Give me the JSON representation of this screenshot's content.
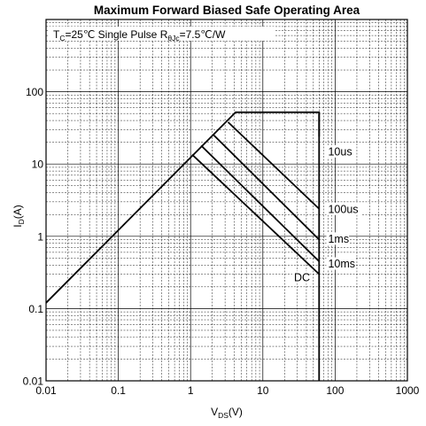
{
  "chart_data": {
    "type": "line",
    "title": "Maximum Forward Biased Safe Operating Area",
    "annotation": {
      "tc_main": "T",
      "tc_sub": "C",
      "tc_rest": "=25℃ Single Pulse R",
      "rth_sub": "θJc",
      "rth_rest": "=7.5℃/W"
    },
    "xlabel": {
      "main": "V",
      "sub": "DS",
      "rest": "(V)"
    },
    "ylabel": {
      "main": "I",
      "sub": "D",
      "rest": "(A)"
    },
    "x_scale": "log",
    "y_scale": "log",
    "xlim": [
      0.01,
      1000
    ],
    "ylim": [
      0.01,
      1000
    ],
    "x_ticks": [
      {
        "value": 0.01,
        "label": "0.01"
      },
      {
        "value": 0.1,
        "label": "0.1"
      },
      {
        "value": 1,
        "label": "1"
      },
      {
        "value": 10,
        "label": "10"
      },
      {
        "value": 100,
        "label": "100"
      },
      {
        "value": 1000,
        "label": "1000"
      }
    ],
    "y_ticks": [
      {
        "value": 0.01,
        "label": "0.01"
      },
      {
        "value": 0.1,
        "label": "0.1"
      },
      {
        "value": 1,
        "label": "1"
      },
      {
        "value": 10,
        "label": "10"
      },
      {
        "value": 100,
        "label": "100"
      }
    ],
    "grid": true,
    "series": [
      {
        "name": "10us",
        "x": [
          0.01,
          4.2,
          60,
          60
        ],
        "y": [
          0.12,
          52,
          52,
          24
        ]
      },
      {
        "name": "100us",
        "x": [
          3.3,
          60
        ],
        "y": [
          38,
          2.4
        ]
      },
      {
        "name": "1ms",
        "x": [
          2.1,
          60
        ],
        "y": [
          25,
          0.9
        ]
      },
      {
        "name": "10ms",
        "x": [
          1.4,
          60
        ],
        "y": [
          18,
          0.45
        ]
      },
      {
        "name": "DC",
        "x": [
          1.05,
          60
        ],
        "y": [
          13.5,
          0.3
        ]
      },
      {
        "name": "",
        "x": [
          60,
          60
        ],
        "y": [
          52,
          0.01
        ]
      }
    ],
    "curve_labels": [
      {
        "text": "10us",
        "x": 80,
        "y": 15
      },
      {
        "text": "100us",
        "x": 80,
        "y": 2.4
      },
      {
        "text": "1ms",
        "x": 80,
        "y": 0.93
      },
      {
        "text": "10ms",
        "x": 80,
        "y": 0.42
      },
      {
        "text": "DC",
        "x": 27,
        "y": 0.27
      }
    ]
  }
}
